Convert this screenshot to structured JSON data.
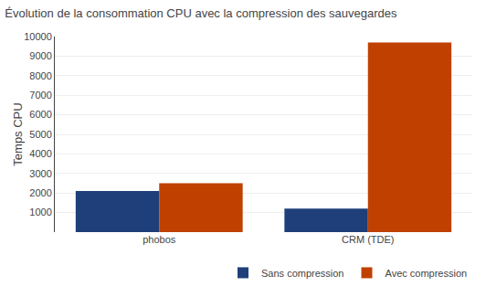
{
  "chart_data": {
    "type": "bar",
    "title": "Évolution de la consommation CPU avec la compression des sauvegardes",
    "categories": [
      "phobos",
      "CRM (TDE)"
    ],
    "series": [
      {
        "name": "Sans compression",
        "color": "#1F3F7A",
        "values": [
          2100,
          1200
        ]
      },
      {
        "name": "Avec compression",
        "color": "#C04000",
        "values": [
          2500,
          9700
        ]
      }
    ],
    "ylabel": "Temps CPU",
    "ylim": [
      0,
      10000
    ],
    "yticks": [
      1000,
      2000,
      3000,
      4000,
      5000,
      6000,
      7000,
      8000,
      9000,
      10000
    ],
    "grid": true,
    "legend": "lower right"
  }
}
